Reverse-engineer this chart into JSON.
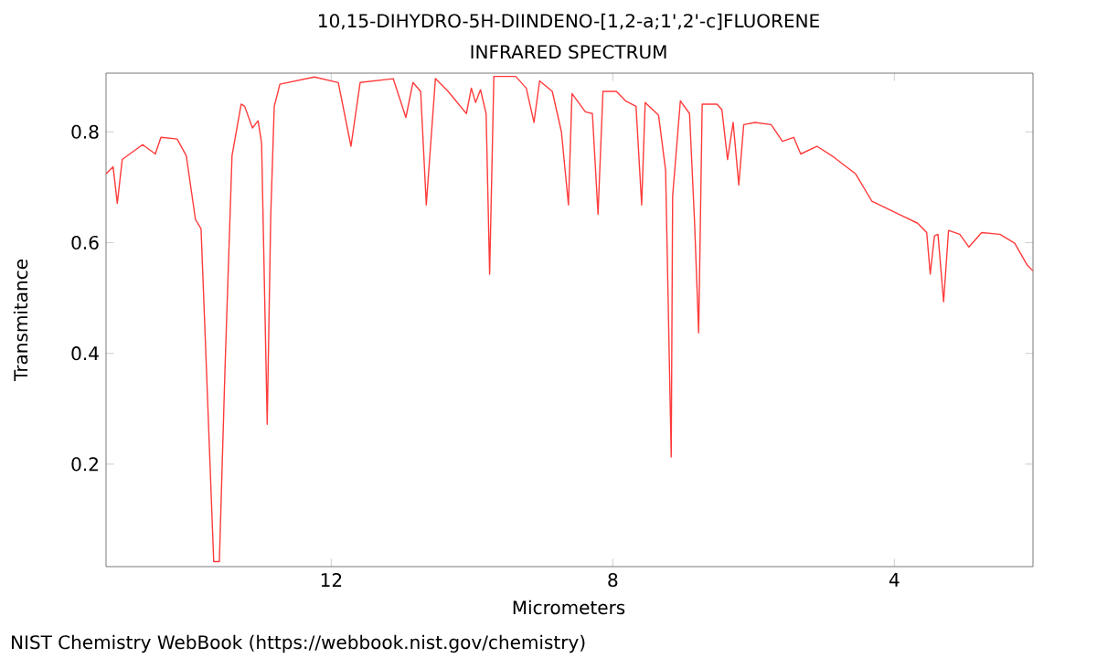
{
  "chart_data": {
    "type": "line",
    "title": "10,15-DIHYDRO-5H-DIINDENO-[1,2-a;1',2'-c]FLUORENE",
    "subtitle": "INFRARED SPECTRUM",
    "xlabel": "Micrometers",
    "ylabel": "Transmitance",
    "annotations": [
      "NIST Chemistry WebBook (https://webbook.nist.gov/chemistry)"
    ],
    "xlim": [
      15.2,
      2.03
    ],
    "ylim": [
      0.015,
      0.906
    ],
    "xticks": [
      12,
      8,
      4
    ],
    "yticks": [
      0.2,
      0.4,
      0.6,
      0.8
    ],
    "grid": false,
    "series": [
      {
        "color": "#ff3b3b",
        "x": [
          15.2,
          15.1,
          15.04,
          14.97,
          14.68,
          14.5,
          14.42,
          14.19,
          14.06,
          13.93,
          13.85,
          13.8,
          13.67,
          13.59,
          13.51,
          13.41,
          13.28,
          13.23,
          13.12,
          13.04,
          12.99,
          12.91,
          12.86,
          12.81,
          12.73,
          12.24,
          11.9,
          11.72,
          11.59,
          11.12,
          10.94,
          10.84,
          10.73,
          10.65,
          10.52,
          10.34,
          10.08,
          10.01,
          9.95,
          9.88,
          9.8,
          9.75,
          9.69,
          9.38,
          9.23,
          9.12,
          9.04,
          8.86,
          8.73,
          8.63,
          8.58,
          8.39,
          8.29,
          8.21,
          8.14,
          7.95,
          7.82,
          7.67,
          7.59,
          7.54,
          7.35,
          7.25,
          7.17,
          7.15,
          7.04,
          6.91,
          6.84,
          6.78,
          6.73,
          6.52,
          6.45,
          6.37,
          6.29,
          6.21,
          6.14,
          5.98,
          5.75,
          5.59,
          5.43,
          5.33,
          5.1,
          4.89,
          4.55,
          4.32,
          3.93,
          3.67,
          3.54,
          3.49,
          3.43,
          3.38,
          3.3,
          3.23,
          3.07,
          2.94,
          2.76,
          2.5,
          2.29,
          2.11,
          2.03
        ],
        "values": [
          0.724,
          0.737,
          0.671,
          0.75,
          0.777,
          0.76,
          0.79,
          0.787,
          0.757,
          0.642,
          0.625,
          0.46,
          0.024,
          0.024,
          0.371,
          0.757,
          0.85,
          0.846,
          0.807,
          0.82,
          0.78,
          0.272,
          0.648,
          0.846,
          0.886,
          0.899,
          0.889,
          0.774,
          0.889,
          0.896,
          0.826,
          0.889,
          0.873,
          0.668,
          0.896,
          0.873,
          0.833,
          0.879,
          0.853,
          0.876,
          0.833,
          0.543,
          0.9,
          0.9,
          0.879,
          0.817,
          0.892,
          0.873,
          0.8,
          0.668,
          0.869,
          0.836,
          0.833,
          0.651,
          0.873,
          0.873,
          0.856,
          0.846,
          0.668,
          0.853,
          0.83,
          0.731,
          0.213,
          0.684,
          0.856,
          0.833,
          0.642,
          0.437,
          0.85,
          0.85,
          0.84,
          0.75,
          0.817,
          0.704,
          0.813,
          0.817,
          0.813,
          0.783,
          0.79,
          0.76,
          0.774,
          0.757,
          0.724,
          0.675,
          0.651,
          0.635,
          0.618,
          0.543,
          0.612,
          0.615,
          0.493,
          0.622,
          0.615,
          0.592,
          0.618,
          0.615,
          0.599,
          0.559,
          0.549
        ]
      }
    ]
  }
}
